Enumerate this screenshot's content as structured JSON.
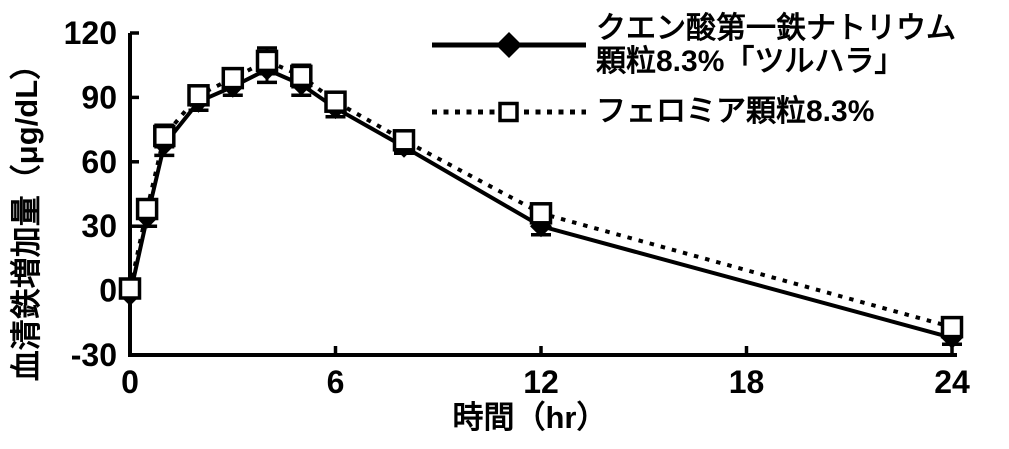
{
  "figure": {
    "y_axis_title": "血清鉄増加量（μg/dL）",
    "x_axis_title": "時間（hr）"
  },
  "legend": {
    "entries": [
      {
        "label_line1": "クエン酸第一鉄ナトリウム",
        "label_line2": "顆粒8.3%「ツルハラ」",
        "marker": "filled-diamond",
        "line": "solid"
      },
      {
        "label_line1": "フェロミア顆粒8.3%",
        "marker": "open-square",
        "line": "dotted"
      }
    ]
  },
  "chart_data": {
    "type": "line",
    "title": "",
    "xlabel": "時間（hr）",
    "ylabel": "血清鉄増加量（μg/dL）",
    "x": [
      0,
      0.5,
      1,
      2,
      3,
      4,
      5,
      6,
      8,
      12,
      24
    ],
    "series": [
      {
        "name": "クエン酸第一鉄ナトリウム顆粒8.3%「ツルハラ」",
        "marker": "filled-diamond",
        "line_style": "solid",
        "values": [
          -2,
          34,
          68,
          88,
          95,
          103,
          96,
          85,
          67,
          30,
          -22
        ],
        "errors": [
          1,
          4,
          5,
          4,
          4,
          6,
          5,
          4,
          3,
          4,
          3
        ]
      },
      {
        "name": "フェロミア顆粒8.3%",
        "marker": "open-square",
        "line_style": "dotted",
        "values": [
          1,
          38,
          72,
          91,
          99,
          107,
          100,
          88,
          70,
          36,
          -17
        ],
        "errors": [
          1,
          4,
          5,
          4,
          4,
          6,
          5,
          4,
          3,
          4,
          3
        ]
      }
    ],
    "xlim": [
      0,
      24
    ],
    "ylim": [
      -30,
      120
    ],
    "x_ticks": [
      0,
      6,
      12,
      18,
      24
    ],
    "y_ticks": [
      120,
      90,
      60,
      30,
      0,
      -30
    ],
    "grid": false,
    "legend_position": "top-right",
    "colors": {
      "foreground": "#000000",
      "background": "#ffffff"
    }
  }
}
